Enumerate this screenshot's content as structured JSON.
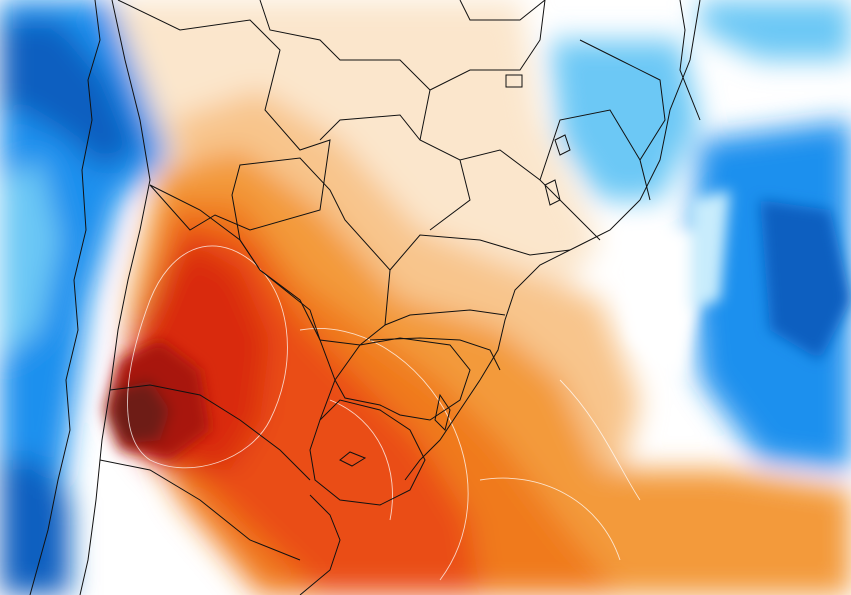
{
  "map": {
    "type": "temperature-anomaly-field",
    "region": "South America",
    "legend_visible": false,
    "palette": {
      "deep_blue": "#0a5fc0",
      "blue": "#1e90ee",
      "light_blue": "#6cc8f5",
      "pale_blue": "#c8ecfc",
      "white": "#ffffff",
      "pale_orange": "#fbe6cc",
      "light_orange": "#f8c58c",
      "orange": "#f39a3a",
      "dark_orange": "#f07a1e",
      "red_orange": "#ea4e14",
      "red": "#d92a10",
      "dark_red": "#a8160c",
      "maroon": "#6e1a18",
      "border": "#111111",
      "contour": "#ffffff"
    }
  }
}
